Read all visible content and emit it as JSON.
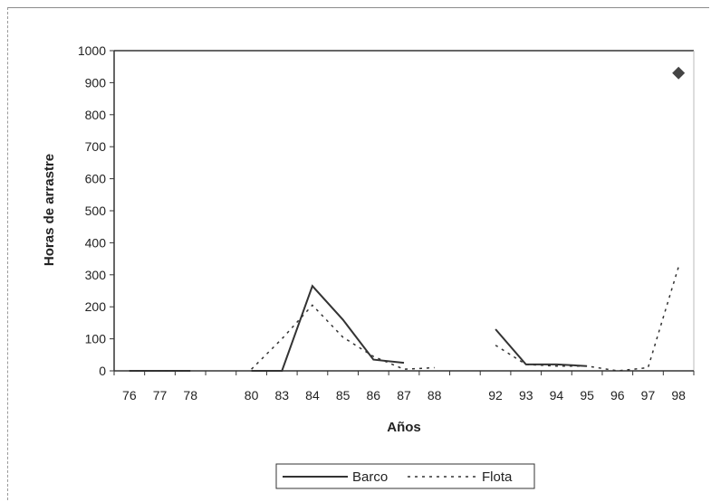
{
  "chart_data": {
    "type": "line",
    "xlabel": "Años",
    "ylabel": "Horas de arrastre",
    "ylim": [
      0,
      1000
    ],
    "yticks": [
      0,
      100,
      200,
      300,
      400,
      500,
      600,
      700,
      800,
      900,
      1000
    ],
    "categories": [
      "76",
      "77",
      "78",
      "",
      "80",
      "83",
      "84",
      "85",
      "86",
      "87",
      "88",
      "",
      "92",
      "93",
      "94",
      "95",
      "96",
      "97",
      "98"
    ],
    "series": [
      {
        "name": "Barco",
        "style": "solid",
        "color": "#333333",
        "values": [
          0,
          0,
          0,
          null,
          0,
          0,
          265,
          160,
          35,
          25,
          null,
          null,
          130,
          20,
          20,
          15,
          null,
          null,
          null
        ]
      },
      {
        "name": "Flota",
        "style": "dotted",
        "color": "#333333",
        "values": [
          0,
          0,
          0,
          null,
          5,
          100,
          205,
          105,
          45,
          5,
          10,
          null,
          80,
          20,
          15,
          15,
          0,
          10,
          325
        ]
      }
    ],
    "markers": [
      {
        "category": "98",
        "value": 930,
        "shape": "diamond",
        "color": "#444444"
      }
    ],
    "legend": {
      "position": "bottom",
      "entries": [
        "Barco",
        "Flota"
      ]
    },
    "grid": false
  }
}
